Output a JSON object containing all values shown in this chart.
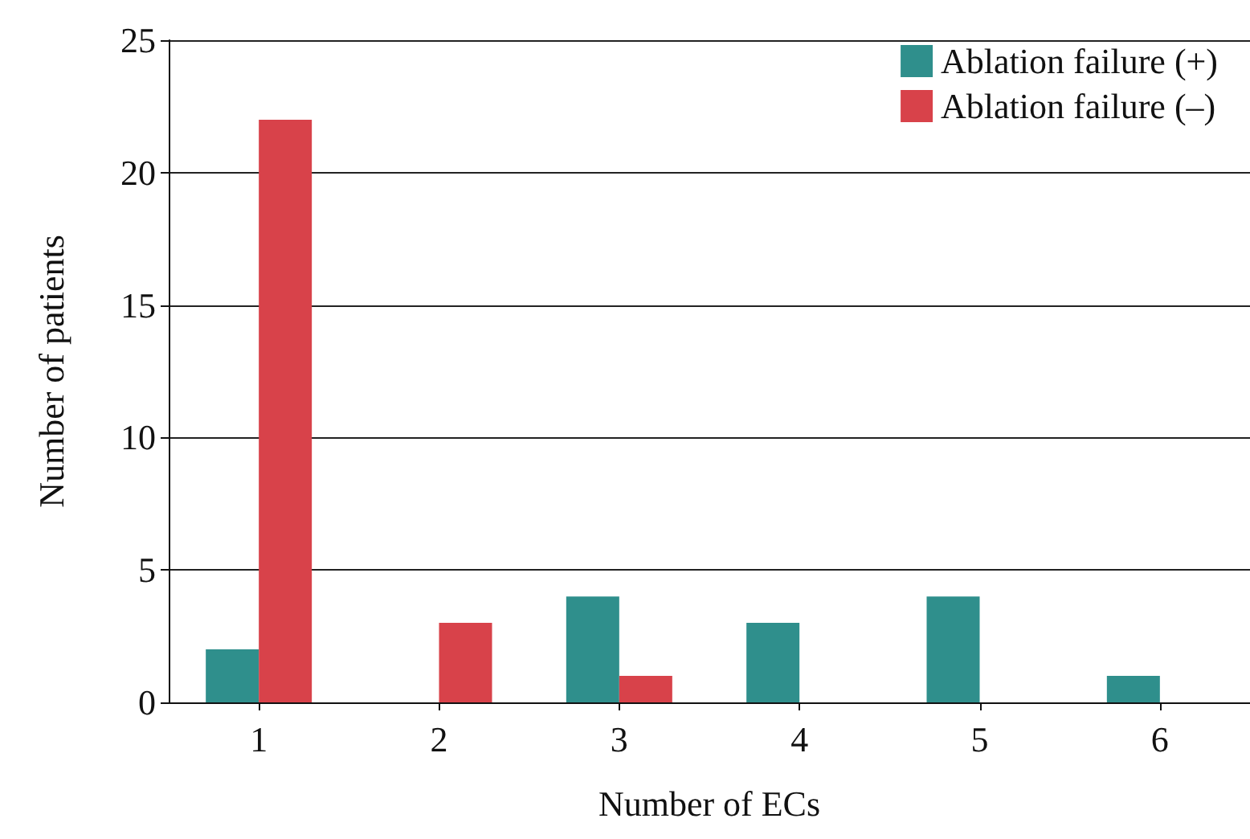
{
  "chart_data": {
    "type": "bar",
    "xlabel": "Number of ECs",
    "ylabel": "Number of patients",
    "categories": [
      "1",
      "2",
      "3",
      "4",
      "5",
      "6"
    ],
    "series": [
      {
        "name": "Ablation failure (+)",
        "color": "#2f8f8c",
        "values": [
          2,
          0,
          4,
          3,
          4,
          1
        ]
      },
      {
        "name": "Ablation failure (–)",
        "color": "#d8424a",
        "values": [
          22,
          3,
          1,
          0,
          0,
          0
        ]
      }
    ],
    "ylim": [
      0,
      25
    ],
    "yticks": [
      0,
      5,
      10,
      15,
      20,
      25
    ],
    "grid": "y",
    "legend": "top right"
  }
}
